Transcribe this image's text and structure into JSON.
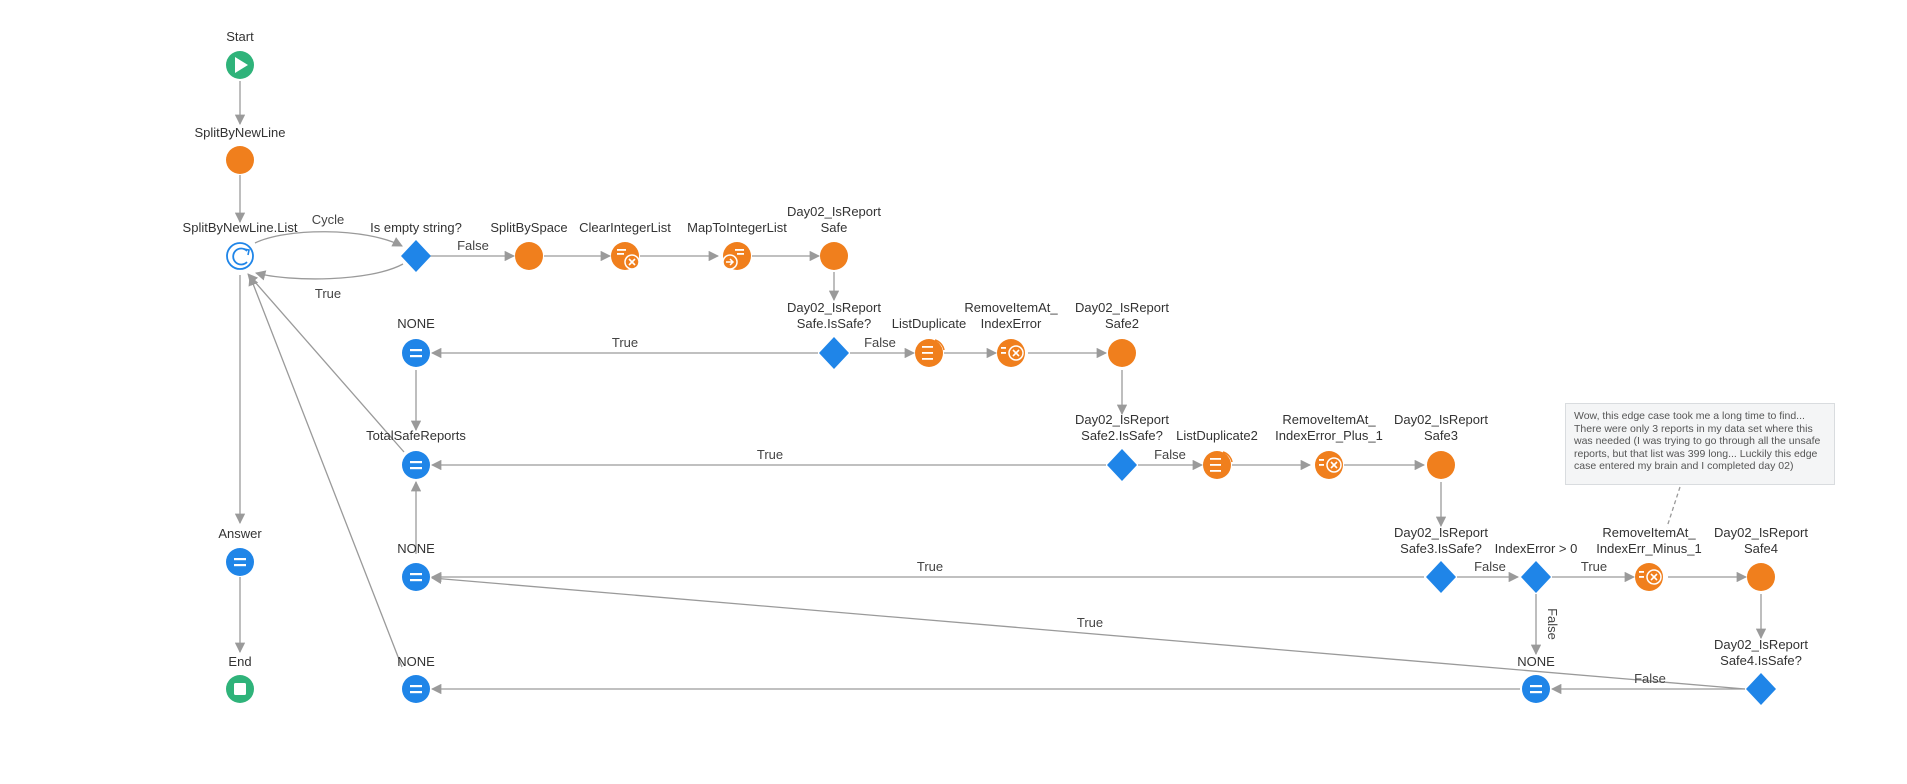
{
  "colors": {
    "start_end": "#2fb37a",
    "action": "#f07f1d",
    "decision": "#1f85e8",
    "edge": "#9a9a9a"
  },
  "labels": {
    "start": "Start",
    "split_by_new_line": "SplitByNewLine",
    "foreach": "SplitByNewLine.List",
    "answer": "Answer",
    "end": "End",
    "is_empty": "Is empty string?",
    "split_by_space": "SplitBySpace",
    "clear_integer_list": "ClearIntegerList",
    "map_to_integer_list": "MapToIntegerList",
    "safe1_a": "Day02_IsReport",
    "safe1_b": "Safe",
    "safe1q_a": "Day02_IsReport",
    "safe1q_b": "Safe.IsSafe?",
    "list_duplicate": "ListDuplicate",
    "remove_a": "RemoveItemAt_",
    "remove_b": "IndexError",
    "safe2_a": "Day02_IsReport",
    "safe2_b": "Safe2",
    "none1": "NONE",
    "total_safe_reports": "TotalSafeReports",
    "safe2q_a": "Day02_IsReport",
    "safe2q_b": "Safe2.IsSafe?",
    "list_duplicate2": "ListDuplicate2",
    "remove2_a": "RemoveItemAt_",
    "remove2_b": "IndexError_Plus_1",
    "safe3_a": "Day02_IsReport",
    "safe3_b": "Safe3",
    "none2": "NONE",
    "safe3q_a": "Day02_IsReport",
    "safe3q_b": "Safe3.IsSafe?",
    "index_error": "IndexError > 0",
    "remove3_a": "RemoveItemAt_",
    "remove3_b": "IndexErr_Minus_1",
    "safe4_a": "Day02_IsReport",
    "safe4_b": "Safe4",
    "safe4q_a": "Day02_IsReport",
    "safe4q_b": "Safe4.IsSafe?",
    "none3": "NONE",
    "none4": "NONE"
  },
  "edge_labels": {
    "cycle": "Cycle",
    "true_loop": "True",
    "false_empty": "False",
    "true_safe1": "True",
    "false_safe1": "False",
    "true_safe2": "True",
    "false_safe2": "False",
    "true_safe3": "True",
    "false_safe3": "False",
    "true_index": "True",
    "false_index": "False",
    "true_safe4": "True",
    "false_safe4": "False"
  },
  "note": {
    "lines": [
      "Wow, this edge case took me a long time to find...",
      "There were only 3 reports in my data set where this",
      "was needed (I was trying to go through all the unsafe",
      "reports, but that list was 399 long... Luckily this edge",
      "case entered my brain and I completed day 02)"
    ]
  }
}
